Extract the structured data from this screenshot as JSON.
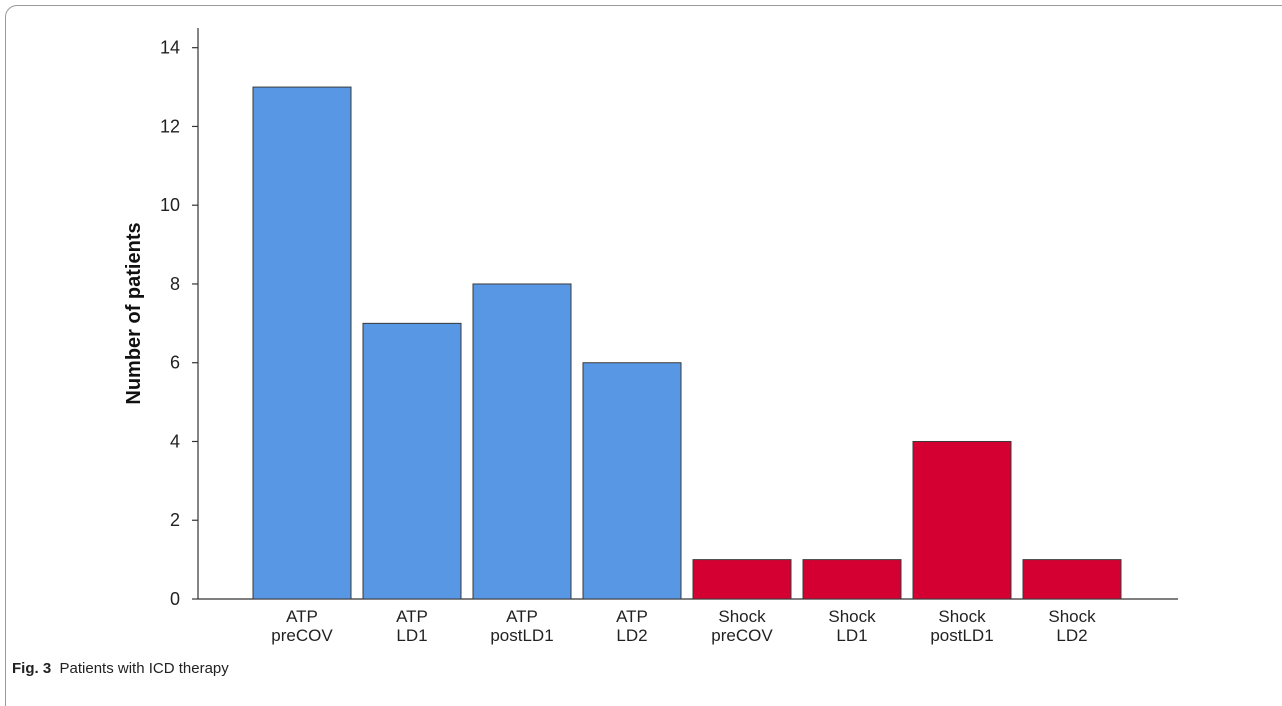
{
  "caption": {
    "label": "Fig. 3",
    "text": "Patients with ICD therapy"
  },
  "chart_data": {
    "type": "bar",
    "title": "",
    "xlabel": "",
    "ylabel": "Number of patients",
    "ylim": [
      0,
      14.5
    ],
    "yticks": [
      0,
      2,
      4,
      6,
      8,
      10,
      12,
      14
    ],
    "grid": false,
    "categories": [
      [
        "ATP",
        "preCOV"
      ],
      [
        "ATP",
        "LD1"
      ],
      [
        "ATP",
        "postLD1"
      ],
      [
        "ATP",
        "LD2"
      ],
      [
        "Shock",
        "preCOV"
      ],
      [
        "Shock",
        "LD1"
      ],
      [
        "Shock",
        "postLD1"
      ],
      [
        "Shock",
        "LD2"
      ]
    ],
    "values": [
      13,
      7,
      8,
      6,
      1,
      1,
      4,
      1
    ],
    "bar_colors": [
      "#5797e4",
      "#5797e4",
      "#5797e4",
      "#5797e4",
      "#d40032",
      "#d40032",
      "#d40032",
      "#d40032"
    ],
    "bar_edge_color": "#3a3a3a"
  }
}
